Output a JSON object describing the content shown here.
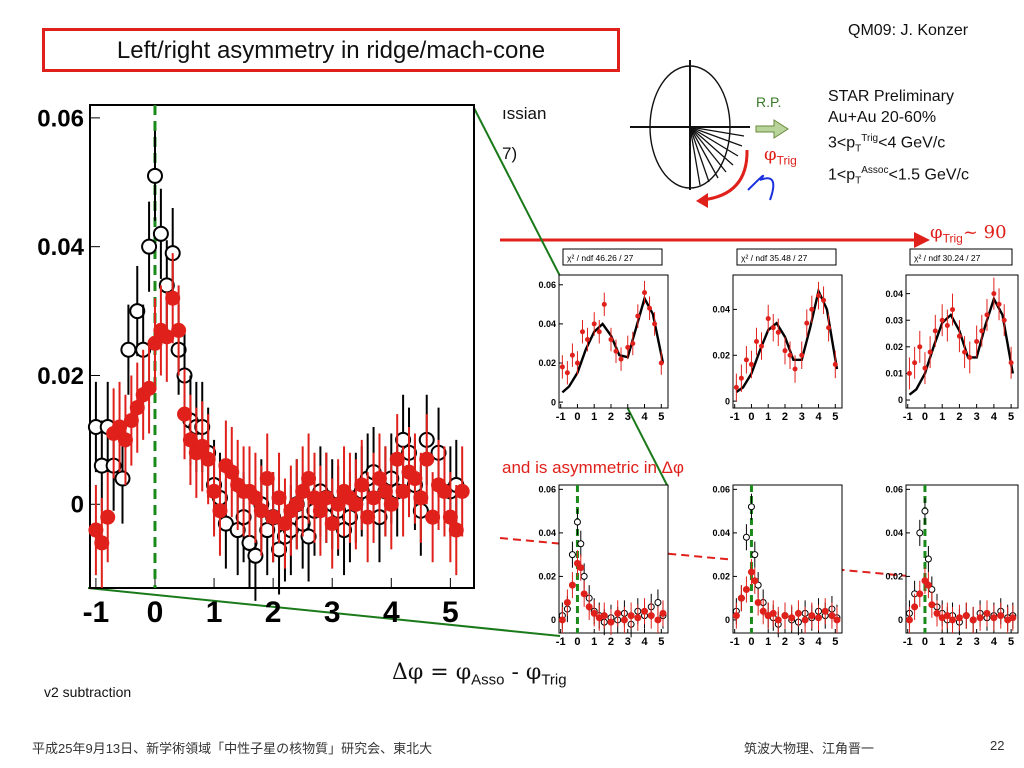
{
  "slide": {
    "title": "Left/right asymmetry in ridge/mach-cone",
    "credit": "QM09: J. Konzer",
    "star_info": {
      "line1": "STAR Preliminary",
      "line2": "Au+Au 20-60%",
      "line3_pre": "3<p",
      "line3_sub": "T",
      "line3_sup": "Trig",
      "line3_post": "<4 GeV/c",
      "line4_pre": "1<p",
      "line4_sub": "T",
      "line4_sup": "Assoc",
      "line4_post": "<1.5 GeV/c"
    },
    "partial_text_1": "ıssian",
    "partial_text_2": "7)",
    "rp_label": "R.P.",
    "phi_trig_symbol": "φ",
    "phi_trig_sub": "Trig",
    "phi_trig_90_symbol": "φ",
    "phi_trig_90_sub": "Trig",
    "phi_trig_90_post": "~ 90",
    "asym_label": "and is asymmetric in Δφ",
    "dphi_pre": "Δφ = φ",
    "dphi_sub1": "Asso",
    "dphi_mid": " - φ",
    "dphi_sub2": "Trig",
    "v2_label": "v2 subtraction",
    "footer_left": "平成25年9月13日、新学術領域「中性子星の核物質」研究会、東北大",
    "footer_right": "筑波大物理、江角晋一",
    "page_number": "22"
  },
  "colors": {
    "accent_red": "#e0201b",
    "green_dash": "#1a8a1a",
    "green_line": "#1a7a1a",
    "open_marker": "#000000",
    "filled_marker": "#e0201b"
  },
  "chart_data": [
    {
      "type": "scatter",
      "id": "main",
      "title": "",
      "xlim": [
        -1.1,
        5.4
      ],
      "ylim": [
        -0.013,
        0.062
      ],
      "xticks": [
        -1,
        0,
        1,
        2,
        3,
        4,
        5
      ],
      "yticks": [
        0,
        0.02,
        0.04,
        0.06
      ],
      "ytick_labels": [
        "0",
        "0.02",
        "0.04",
        "0.06"
      ],
      "vline_x": 0,
      "series": [
        {
          "style": "open",
          "x": [
            -1.0,
            -0.9,
            -0.8,
            -0.7,
            -0.55,
            -0.45,
            -0.3,
            -0.2,
            -0.1,
            0.0,
            0.1,
            0.2,
            0.3,
            0.4,
            0.5,
            0.6,
            0.7,
            0.8,
            0.9,
            1.0,
            1.1,
            1.2,
            1.4,
            1.5,
            1.6,
            1.7,
            1.8,
            1.9,
            2.0,
            2.1,
            2.2,
            2.3,
            2.4,
            2.5,
            2.6,
            2.7,
            2.8,
            2.9,
            3.0,
            3.1,
            3.2,
            3.3,
            3.4,
            3.5,
            3.6,
            3.7,
            3.8,
            3.9,
            4.0,
            4.1,
            4.2,
            4.3,
            4.4,
            4.5,
            4.6,
            4.8,
            5.0,
            5.1
          ],
          "y": [
            0.012,
            0.006,
            0.012,
            0.006,
            0.004,
            0.024,
            0.03,
            0.024,
            0.04,
            0.051,
            0.042,
            0.034,
            0.039,
            0.024,
            0.02,
            0.013,
            0.012,
            0.012,
            0.008,
            0.003,
            0.001,
            -0.003,
            -0.004,
            -0.002,
            -0.006,
            -0.008,
            0.0,
            -0.004,
            -0.002,
            -0.007,
            -0.005,
            -0.004,
            0.0,
            -0.003,
            -0.005,
            -0.001,
            0.002,
            0.001,
            0.0,
            -0.001,
            -0.004,
            -0.002,
            0.001,
            0.002,
            0.004,
            0.005,
            -0.002,
            0.002,
            0.004,
            0.002,
            0.01,
            0.008,
            0.003,
            -0.001,
            0.01,
            0.008,
            0.002,
            0.003
          ]
        },
        {
          "style": "filled",
          "x": [
            -1.0,
            -0.9,
            -0.8,
            -0.7,
            -0.6,
            -0.5,
            -0.4,
            -0.3,
            -0.2,
            -0.1,
            0.0,
            0.1,
            0.2,
            0.3,
            0.4,
            0.5,
            0.6,
            0.7,
            0.8,
            0.9,
            1.0,
            1.1,
            1.2,
            1.3,
            1.4,
            1.5,
            1.6,
            1.7,
            1.8,
            1.9,
            2.0,
            2.1,
            2.2,
            2.3,
            2.4,
            2.5,
            2.6,
            2.7,
            2.8,
            2.9,
            3.0,
            3.1,
            3.2,
            3.3,
            3.4,
            3.5,
            3.6,
            3.7,
            3.8,
            3.9,
            4.0,
            4.1,
            4.2,
            4.3,
            4.4,
            4.5,
            4.6,
            4.7,
            4.8,
            4.9,
            5.0,
            5.1,
            5.2
          ],
          "y": [
            -0.004,
            -0.006,
            -0.002,
            0.011,
            0.012,
            0.01,
            0.013,
            0.015,
            0.017,
            0.018,
            0.025,
            0.027,
            0.026,
            0.032,
            0.027,
            0.014,
            0.01,
            0.008,
            0.009,
            0.007,
            0.002,
            -0.001,
            0.006,
            0.005,
            0.003,
            0.002,
            0.002,
            0.001,
            -0.001,
            0.004,
            -0.002,
            0.001,
            -0.003,
            -0.001,
            0.0,
            0.002,
            0.004,
            0.001,
            -0.001,
            0.001,
            -0.003,
            0.0,
            0.002,
            0.001,
            0.0,
            0.003,
            -0.002,
            0.001,
            0.004,
            0.002,
            0.0,
            0.007,
            0.002,
            0.005,
            0.004,
            0.001,
            0.007,
            -0.002,
            0.003,
            0.002,
            -0.002,
            -0.004,
            0.002
          ]
        }
      ]
    },
    {
      "type": "scatter",
      "id": "top-left",
      "fit_label": "χ² / ndf  46.26 / 27",
      "xlim": [
        -1.1,
        5.4
      ],
      "ylim": [
        -0.003,
        0.065
      ],
      "xticks": [
        -1,
        0,
        1,
        2,
        3,
        4,
        5
      ],
      "yticks": [
        0,
        0.02,
        0.04,
        0.06
      ],
      "ytick_labels": [
        "0",
        "0.02",
        "0.04",
        "0.06"
      ],
      "fit": {
        "x": [
          -0.9,
          -0.5,
          0.0,
          0.5,
          1.0,
          1.5,
          2.0,
          2.5,
          3.0,
          3.5,
          4.0,
          4.5,
          5.1
        ],
        "y": [
          0.005,
          0.008,
          0.015,
          0.027,
          0.036,
          0.04,
          0.034,
          0.024,
          0.023,
          0.038,
          0.053,
          0.045,
          0.02
        ]
      },
      "series": [
        {
          "style": "filled",
          "x": [
            -0.9,
            -0.6,
            -0.3,
            0.0,
            0.3,
            0.6,
            1.0,
            1.3,
            1.6,
            2.0,
            2.3,
            2.6,
            3.0,
            3.3,
            3.6,
            4.0,
            4.3,
            4.6,
            5.0
          ],
          "y": [
            0.018,
            0.015,
            0.024,
            0.02,
            0.036,
            0.032,
            0.04,
            0.036,
            0.05,
            0.032,
            0.026,
            0.022,
            0.028,
            0.03,
            0.044,
            0.056,
            0.048,
            0.04,
            0.02
          ]
        }
      ]
    },
    {
      "type": "scatter",
      "id": "top-middle",
      "fit_label": "χ² / ndf  35.48 / 27",
      "xlim": [
        -1.1,
        5.4
      ],
      "ylim": [
        -0.003,
        0.055
      ],
      "xticks": [
        -1,
        0,
        1,
        2,
        3,
        4,
        5
      ],
      "yticks": [
        0,
        0.02,
        0.04
      ],
      "ytick_labels": [
        "0",
        "0.02",
        "0.04"
      ],
      "fit": {
        "x": [
          -0.9,
          -0.5,
          0.0,
          0.5,
          1.0,
          1.5,
          2.0,
          2.5,
          3.0,
          3.5,
          4.0,
          4.5,
          5.1
        ],
        "y": [
          0.004,
          0.006,
          0.012,
          0.022,
          0.031,
          0.034,
          0.028,
          0.018,
          0.018,
          0.032,
          0.048,
          0.04,
          0.014
        ]
      },
      "series": [
        {
          "style": "filled",
          "x": [
            -0.9,
            -0.6,
            -0.3,
            0.0,
            0.3,
            0.6,
            1.0,
            1.3,
            1.6,
            2.0,
            2.3,
            2.6,
            3.0,
            3.3,
            3.6,
            4.0,
            4.3,
            4.6,
            5.0
          ],
          "y": [
            0.006,
            0.01,
            0.018,
            0.016,
            0.026,
            0.024,
            0.036,
            0.032,
            0.03,
            0.022,
            0.02,
            0.014,
            0.02,
            0.034,
            0.04,
            0.046,
            0.044,
            0.032,
            0.016
          ]
        }
      ]
    },
    {
      "type": "scatter",
      "id": "top-right",
      "fit_label": "χ² / ndf  30.24 / 27",
      "xlim": [
        -1.1,
        5.4
      ],
      "ylim": [
        -0.003,
        0.047
      ],
      "xticks": [
        -1,
        0,
        1,
        2,
        3,
        4,
        5
      ],
      "yticks": [
        0,
        0.01,
        0.02,
        0.03,
        0.04
      ],
      "ytick_labels": [
        "0",
        "0.01",
        "0.02",
        "0.03",
        "0.04"
      ],
      "fit": {
        "x": [
          -0.9,
          -0.5,
          0.0,
          0.5,
          1.0,
          1.5,
          2.0,
          2.5,
          3.0,
          3.5,
          4.0,
          4.5,
          5.1
        ],
        "y": [
          0.002,
          0.004,
          0.01,
          0.02,
          0.029,
          0.032,
          0.026,
          0.016,
          0.016,
          0.028,
          0.038,
          0.032,
          0.01
        ]
      },
      "series": [
        {
          "style": "filled",
          "x": [
            -0.9,
            -0.6,
            -0.3,
            0.0,
            0.3,
            0.6,
            1.0,
            1.3,
            1.6,
            2.0,
            2.3,
            2.6,
            3.0,
            3.3,
            3.6,
            4.0,
            4.3,
            4.6,
            5.0
          ],
          "y": [
            0.01,
            0.014,
            0.02,
            0.012,
            0.018,
            0.026,
            0.03,
            0.028,
            0.034,
            0.024,
            0.018,
            0.016,
            0.022,
            0.026,
            0.032,
            0.04,
            0.036,
            0.03,
            0.014
          ]
        }
      ]
    },
    {
      "type": "scatter",
      "id": "bottom-left",
      "xlim": [
        -1.1,
        5.4
      ],
      "ylim": [
        -0.006,
        0.062
      ],
      "xticks": [
        -1,
        0,
        1,
        2,
        3,
        4,
        5
      ],
      "yticks": [
        0,
        0.02,
        0.04,
        0.06
      ],
      "ytick_labels": [
        "0",
        "0.02",
        "0.04",
        "0.06"
      ],
      "vline_x": 0,
      "series": [
        {
          "style": "open",
          "x": [
            -0.9,
            -0.6,
            -0.3,
            0.0,
            0.2,
            0.4,
            0.7,
            1.0,
            1.3,
            1.6,
            2.0,
            2.4,
            2.8,
            3.2,
            3.6,
            4.0,
            4.4,
            4.8,
            5.1
          ],
          "y": [
            0.002,
            0.005,
            0.03,
            0.045,
            0.035,
            0.02,
            0.01,
            0.004,
            0.002,
            -0.001,
            0.001,
            0.0,
            0.003,
            -0.002,
            0.004,
            0.002,
            0.006,
            0.008,
            0.002
          ]
        },
        {
          "style": "filled",
          "x": [
            -0.9,
            -0.6,
            -0.3,
            0.0,
            0.2,
            0.4,
            0.7,
            1.0,
            1.3,
            1.6,
            2.0,
            2.4,
            2.8,
            3.2,
            3.6,
            4.0,
            4.4,
            4.8,
            5.1
          ],
          "y": [
            0.0,
            0.008,
            0.016,
            0.026,
            0.024,
            0.012,
            0.006,
            0.003,
            0.001,
            0.002,
            -0.001,
            0.003,
            0.0,
            0.002,
            0.001,
            0.004,
            0.002,
            0.0,
            0.003
          ]
        }
      ]
    },
    {
      "type": "scatter",
      "id": "bottom-middle",
      "xlim": [
        -1.1,
        5.4
      ],
      "ylim": [
        -0.006,
        0.062
      ],
      "xticks": [
        -1,
        0,
        1,
        2,
        3,
        4,
        5
      ],
      "yticks": [
        0,
        0.02,
        0.04,
        0.06
      ],
      "ytick_labels": [
        "0",
        "0.02",
        "0.04",
        "0.06"
      ],
      "vline_x": 0,
      "series": [
        {
          "style": "open",
          "x": [
            -0.9,
            -0.6,
            -0.3,
            0.0,
            0.2,
            0.4,
            0.7,
            1.0,
            1.3,
            1.6,
            2.0,
            2.4,
            2.8,
            3.2,
            3.6,
            4.0,
            4.4,
            4.8,
            5.1
          ],
          "y": [
            0.004,
            0.01,
            0.038,
            0.052,
            0.03,
            0.016,
            0.008,
            0.002,
            0.001,
            -0.002,
            0.002,
            0.0,
            -0.001,
            0.003,
            0.001,
            0.004,
            0.002,
            0.005,
            0.001
          ]
        },
        {
          "style": "filled",
          "x": [
            -0.9,
            -0.6,
            -0.3,
            0.0,
            0.2,
            0.4,
            0.7,
            1.0,
            1.3,
            1.6,
            2.0,
            2.4,
            2.8,
            3.2,
            3.6,
            4.0,
            4.4,
            4.8,
            5.1
          ],
          "y": [
            0.002,
            0.01,
            0.014,
            0.022,
            0.018,
            0.008,
            0.004,
            0.002,
            0.003,
            0.0,
            0.002,
            0.001,
            0.003,
            0.0,
            0.002,
            0.001,
            0.004,
            0.002,
            0.0
          ]
        }
      ]
    },
    {
      "type": "scatter",
      "id": "bottom-right",
      "xlim": [
        -1.1,
        5.4
      ],
      "ylim": [
        -0.006,
        0.062
      ],
      "xticks": [
        -1,
        0,
        1,
        2,
        3,
        4,
        5
      ],
      "yticks": [
        0,
        0.02,
        0.04,
        0.06
      ],
      "ytick_labels": [
        "0",
        "0.02",
        "0.04",
        "0.06"
      ],
      "vline_x": 0,
      "series": [
        {
          "style": "open",
          "x": [
            -0.9,
            -0.6,
            -0.3,
            0.0,
            0.2,
            0.4,
            0.7,
            1.0,
            1.3,
            1.6,
            2.0,
            2.4,
            2.8,
            3.2,
            3.6,
            4.0,
            4.4,
            4.8,
            5.1
          ],
          "y": [
            0.003,
            0.012,
            0.04,
            0.05,
            0.028,
            0.014,
            0.006,
            0.003,
            0.0,
            0.002,
            -0.001,
            0.002,
            0.0,
            0.003,
            0.001,
            0.002,
            0.004,
            0.001,
            0.002
          ]
        },
        {
          "style": "filled",
          "x": [
            -0.9,
            -0.6,
            -0.3,
            0.0,
            0.2,
            0.4,
            0.7,
            1.0,
            1.3,
            1.6,
            2.0,
            2.4,
            2.8,
            3.2,
            3.6,
            4.0,
            4.4,
            4.8,
            5.1
          ],
          "y": [
            0.0,
            0.006,
            0.012,
            0.018,
            0.016,
            0.007,
            0.003,
            0.001,
            0.002,
            0.0,
            0.001,
            0.002,
            0.0,
            0.001,
            0.003,
            0.001,
            0.002,
            0.0,
            0.001
          ]
        }
      ]
    }
  ]
}
